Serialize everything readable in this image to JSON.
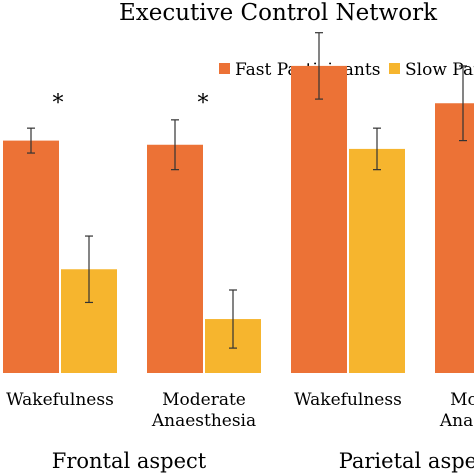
{
  "chart_data": {
    "type": "bar",
    "title": "Executive Control Network",
    "legend_position": "top-right",
    "categories": [
      [
        "Wakefulness"
      ],
      [
        "Moderate",
        "Anaesthesia"
      ],
      [
        "Wakefulness"
      ],
      [
        "Moderate",
        "Anaesthesia"
      ]
    ],
    "groups": [
      "Frontal aspect",
      "Parietal aspect"
    ],
    "series": [
      {
        "name": "Fast Participants",
        "color": "#EC7236",
        "values": [
          0.56,
          0.55,
          0.74,
          0.65
        ],
        "errors": [
          0.03,
          0.06,
          0.08,
          0.09
        ]
      },
      {
        "name": "Slow Participants",
        "color": "#F6B52E",
        "values": [
          0.25,
          0.13,
          0.54,
          0.51
        ],
        "errors": [
          0.08,
          0.07,
          0.05,
          0.06
        ]
      }
    ],
    "significance": [
      "*",
      "*",
      "",
      ""
    ],
    "ylim": [
      -0.15,
      1.15
    ],
    "grid": false
  }
}
